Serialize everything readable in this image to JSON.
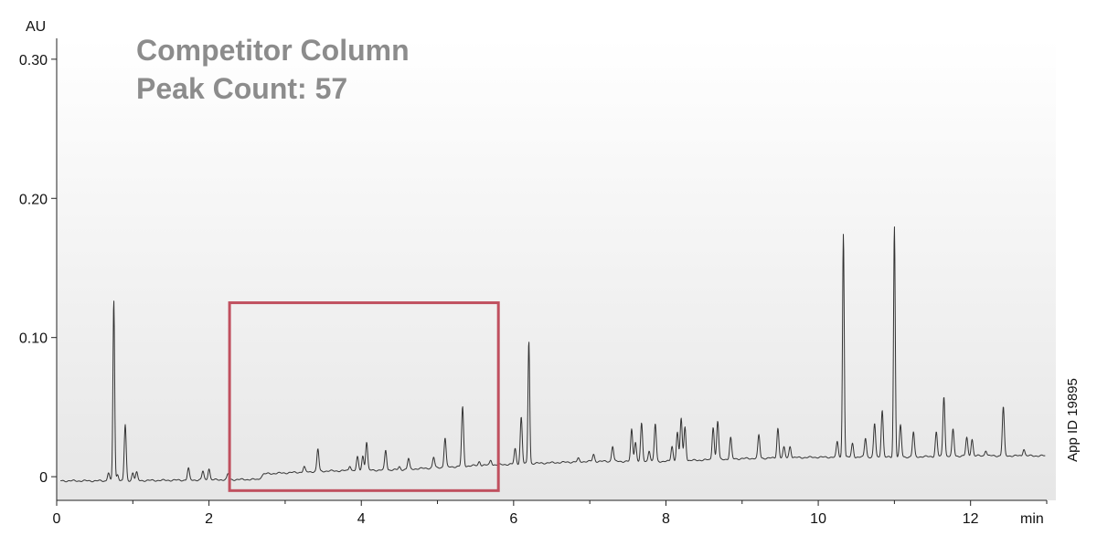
{
  "chart_data": {
    "type": "line",
    "title_lines": [
      "Competitor Column",
      "Peak Count: 57"
    ],
    "ylabel": "AU",
    "xlabel": "min",
    "side_note": "App ID 19895",
    "xlim": [
      0,
      13
    ],
    "ylim": [
      -0.017,
      0.315
    ],
    "x_ticks": [
      0,
      2,
      4,
      6,
      8,
      10,
      12
    ],
    "x_tick_labels": [
      "0",
      "2",
      "4",
      "6",
      "8",
      "10",
      "12"
    ],
    "y_ticks": [
      0,
      0.1,
      0.2,
      0.3
    ],
    "y_tick_labels": [
      "0",
      "0.10",
      "0.20",
      "0.30"
    ],
    "grid": false,
    "line_color": "#333333",
    "highlight_color": "#c0505f",
    "highlight_range": {
      "x": [
        2.27,
        5.8
      ],
      "y": [
        -0.01,
        0.125
      ]
    },
    "baseline": [
      [
        0,
        -0.003
      ],
      [
        0.7,
        -0.003
      ],
      [
        2.5,
        -0.002
      ],
      [
        2.65,
        -0.002
      ],
      [
        2.72,
        0.002
      ],
      [
        3.5,
        0.004
      ],
      [
        4.5,
        0.005
      ],
      [
        5.5,
        0.008
      ],
      [
        6.0,
        0.009
      ],
      [
        7.0,
        0.011
      ],
      [
        8.0,
        0.011
      ],
      [
        8.5,
        0.012
      ],
      [
        9.0,
        0.013
      ],
      [
        10.0,
        0.014
      ],
      [
        11.0,
        0.014
      ],
      [
        12.0,
        0.015
      ],
      [
        13.0,
        0.015
      ]
    ],
    "peaks": [
      {
        "x": 0.68,
        "y": 0.003
      },
      {
        "x": 0.75,
        "y": 0.127
      },
      {
        "x": 0.8,
        "y": 0.002
      },
      {
        "x": 0.9,
        "y": 0.037
      },
      {
        "x": 1.0,
        "y": 0.003
      },
      {
        "x": 1.05,
        "y": 0.003
      },
      {
        "x": 1.73,
        "y": 0.006
      },
      {
        "x": 1.92,
        "y": 0.004
      },
      {
        "x": 2.0,
        "y": 0.006
      },
      {
        "x": 2.25,
        "y": 0.002
      },
      {
        "x": 3.25,
        "y": 0.007
      },
      {
        "x": 3.43,
        "y": 0.02
      },
      {
        "x": 3.85,
        "y": 0.008
      },
      {
        "x": 3.95,
        "y": 0.014
      },
      {
        "x": 4.02,
        "y": 0.015
      },
      {
        "x": 4.07,
        "y": 0.025
      },
      {
        "x": 4.32,
        "y": 0.019
      },
      {
        "x": 4.5,
        "y": 0.007
      },
      {
        "x": 4.62,
        "y": 0.013
      },
      {
        "x": 4.95,
        "y": 0.014
      },
      {
        "x": 5.1,
        "y": 0.028
      },
      {
        "x": 5.33,
        "y": 0.05
      },
      {
        "x": 5.55,
        "y": 0.011
      },
      {
        "x": 5.7,
        "y": 0.012
      },
      {
        "x": 6.02,
        "y": 0.02
      },
      {
        "x": 6.1,
        "y": 0.043
      },
      {
        "x": 6.2,
        "y": 0.098
      },
      {
        "x": 6.85,
        "y": 0.013
      },
      {
        "x": 7.05,
        "y": 0.016
      },
      {
        "x": 7.3,
        "y": 0.022
      },
      {
        "x": 7.55,
        "y": 0.034
      },
      {
        "x": 7.6,
        "y": 0.025
      },
      {
        "x": 7.68,
        "y": 0.038
      },
      {
        "x": 7.78,
        "y": 0.019
      },
      {
        "x": 7.86,
        "y": 0.038
      },
      {
        "x": 8.08,
        "y": 0.022
      },
      {
        "x": 8.15,
        "y": 0.032
      },
      {
        "x": 8.2,
        "y": 0.042
      },
      {
        "x": 8.25,
        "y": 0.036
      },
      {
        "x": 8.62,
        "y": 0.036
      },
      {
        "x": 8.68,
        "y": 0.04
      },
      {
        "x": 8.85,
        "y": 0.028
      },
      {
        "x": 9.22,
        "y": 0.03
      },
      {
        "x": 9.47,
        "y": 0.035
      },
      {
        "x": 9.55,
        "y": 0.021
      },
      {
        "x": 9.63,
        "y": 0.022
      },
      {
        "x": 10.25,
        "y": 0.025
      },
      {
        "x": 10.33,
        "y": 0.175
      },
      {
        "x": 10.45,
        "y": 0.024
      },
      {
        "x": 10.62,
        "y": 0.028
      },
      {
        "x": 10.74,
        "y": 0.038
      },
      {
        "x": 10.84,
        "y": 0.048
      },
      {
        "x": 11.0,
        "y": 0.18
      },
      {
        "x": 11.08,
        "y": 0.037
      },
      {
        "x": 11.25,
        "y": 0.032
      },
      {
        "x": 11.55,
        "y": 0.032
      },
      {
        "x": 11.65,
        "y": 0.058
      },
      {
        "x": 11.77,
        "y": 0.034
      },
      {
        "x": 11.95,
        "y": 0.028
      },
      {
        "x": 12.02,
        "y": 0.027
      },
      {
        "x": 12.2,
        "y": 0.019
      },
      {
        "x": 12.43,
        "y": 0.05
      },
      {
        "x": 12.7,
        "y": 0.02
      }
    ]
  }
}
